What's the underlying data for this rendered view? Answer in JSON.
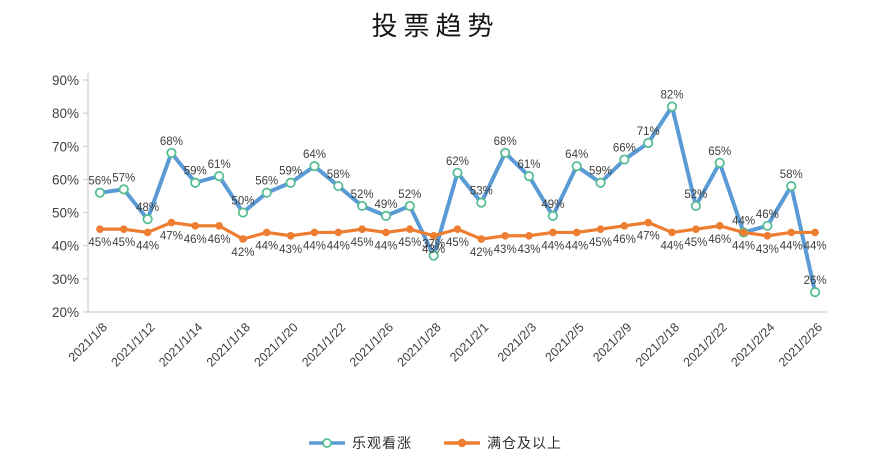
{
  "chart_data": {
    "type": "line",
    "title": "投票趋势",
    "n_points": 31,
    "x_tick_labels": [
      "2021/1/8",
      "2021/1/12",
      "2021/1/14",
      "2021/1/18",
      "2021/1/20",
      "2021/1/22",
      "2021/1/26",
      "2021/1/28",
      "2021/2/1",
      "2021/2/3",
      "2021/2/5",
      "2021/2/9",
      "2021/2/18",
      "2021/2/22",
      "2021/2/24",
      "2021/2/26"
    ],
    "x_tick_every": 2,
    "series": [
      {
        "name": "乐观看涨",
        "color": "#5B9BD5",
        "marker": "open-circle",
        "marker_color": "#58BE92",
        "label_position": "above",
        "values": [
          56,
          57,
          48,
          68,
          59,
          61,
          50,
          56,
          59,
          64,
          58,
          52,
          49,
          52,
          37,
          62,
          53,
          68,
          61,
          49,
          64,
          59,
          66,
          71,
          82,
          52,
          65,
          44,
          46,
          58,
          26
        ]
      },
      {
        "name": "满仓及以上",
        "color": "#ED7D31",
        "marker": "filled-circle",
        "marker_color": "#ED7D31",
        "label_position": "below",
        "values": [
          45,
          45,
          44,
          47,
          46,
          46,
          42,
          44,
          43,
          44,
          44,
          45,
          44,
          45,
          43,
          45,
          42,
          43,
          43,
          44,
          44,
          45,
          46,
          47,
          44,
          45,
          46,
          44,
          43,
          44,
          44
        ]
      }
    ],
    "y_axis": {
      "min": 20,
      "max": 90,
      "ticks": [
        "20%",
        "30%",
        "40%",
        "50%",
        "60%",
        "70%",
        "80%",
        "90%"
      ]
    },
    "value_suffix": "%",
    "grid": "none",
    "legend_position": "bottom",
    "axis_color": "#C6C6C6",
    "label_color": "#3F3F3F"
  }
}
